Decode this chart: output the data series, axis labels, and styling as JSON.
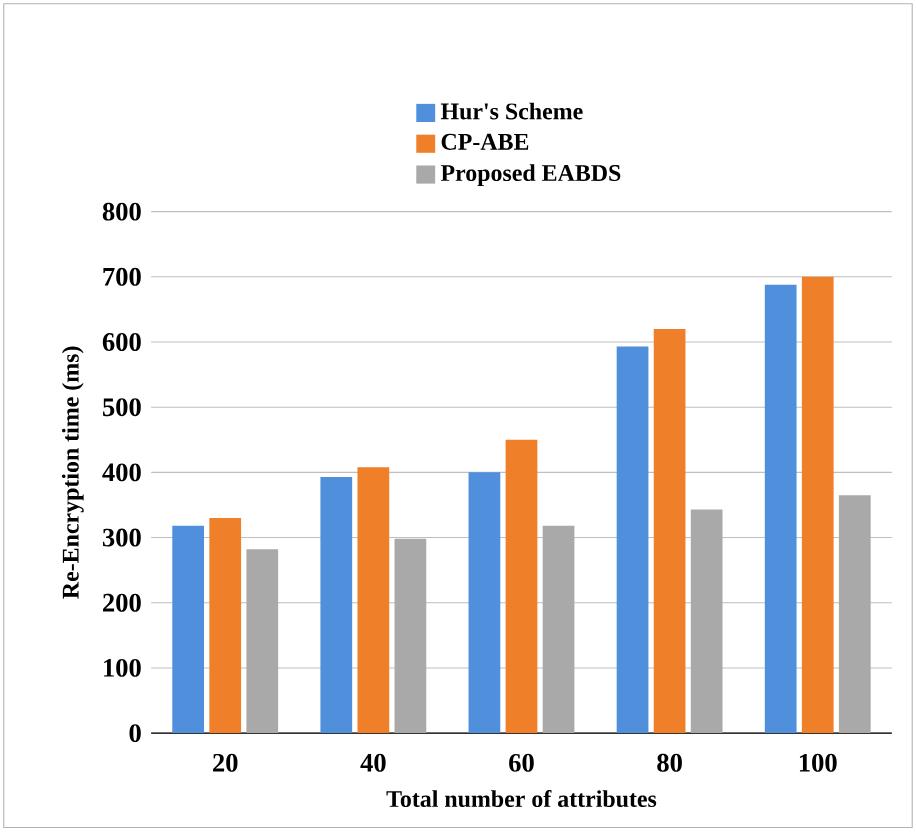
{
  "chart_data": {
    "type": "bar",
    "xlabel": "Total number of attributes",
    "ylabel": "Re-Encryption time (ms)",
    "categories": [
      "20",
      "40",
      "60",
      "80",
      "100"
    ],
    "series": [
      {
        "name": "Hur's Scheme",
        "color": "#4f8fdb",
        "values": [
          318,
          393,
          400,
          593,
          688
        ]
      },
      {
        "name": "CP-ABE",
        "color": "#f07f2a",
        "values": [
          330,
          408,
          450,
          620,
          700
        ]
      },
      {
        "name": "Proposed EABDS",
        "color": "#a9a9a9",
        "values": [
          282,
          298,
          318,
          343,
          365
        ]
      }
    ],
    "ylim": [
      0,
      800
    ],
    "yticks": [
      0,
      100,
      200,
      300,
      400,
      500,
      600,
      700,
      800
    ],
    "grid": "y",
    "legend": "top"
  }
}
